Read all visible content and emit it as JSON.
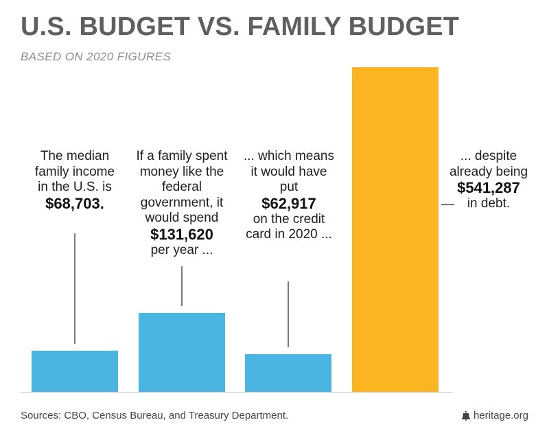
{
  "header": {
    "title": "U.S. BUDGET VS. FAMILY BUDGET",
    "subtitle": "BASED ON 2020 FIGURES"
  },
  "annotations": [
    {
      "text_before": "The median family income in the U.S. is",
      "amount": "$68,703.",
      "text_after": ""
    },
    {
      "text_before": "If a family spent money like the federal government, it would spend",
      "amount": "$131,620",
      "text_after": "per year ..."
    },
    {
      "text_before": "... which means it would have put",
      "amount": "$62,917",
      "text_after": "on the credit card in 2020 ..."
    },
    {
      "text_before": "... despite already being",
      "amount": "$541,287",
      "text_after": "in debt."
    }
  ],
  "footer": {
    "sources": "Sources: CBO, Census Bureau, and Treasury Department.",
    "brand": "heritage.org",
    "brand_icon": "liberty-bell-icon"
  },
  "colors": {
    "bar_blue": "#4ab5e3",
    "bar_orange": "#fab520",
    "title": "#5f5f5f"
  },
  "chart_data": {
    "type": "bar",
    "title": "U.S. BUDGET VS. FAMILY BUDGET",
    "subtitle": "BASED ON 2020 FIGURES",
    "categories": [
      "Median family income",
      "Family spending like federal government",
      "Credit card borrowing in 2020",
      "Debt"
    ],
    "values": [
      68703,
      131620,
      62917,
      541287
    ],
    "bar_colors": [
      "#4ab5e3",
      "#4ab5e3",
      "#4ab5e3",
      "#fab520"
    ],
    "xlabel": "",
    "ylabel": "",
    "ylim": [
      0,
      541287
    ],
    "grid": false,
    "legend": "none"
  }
}
